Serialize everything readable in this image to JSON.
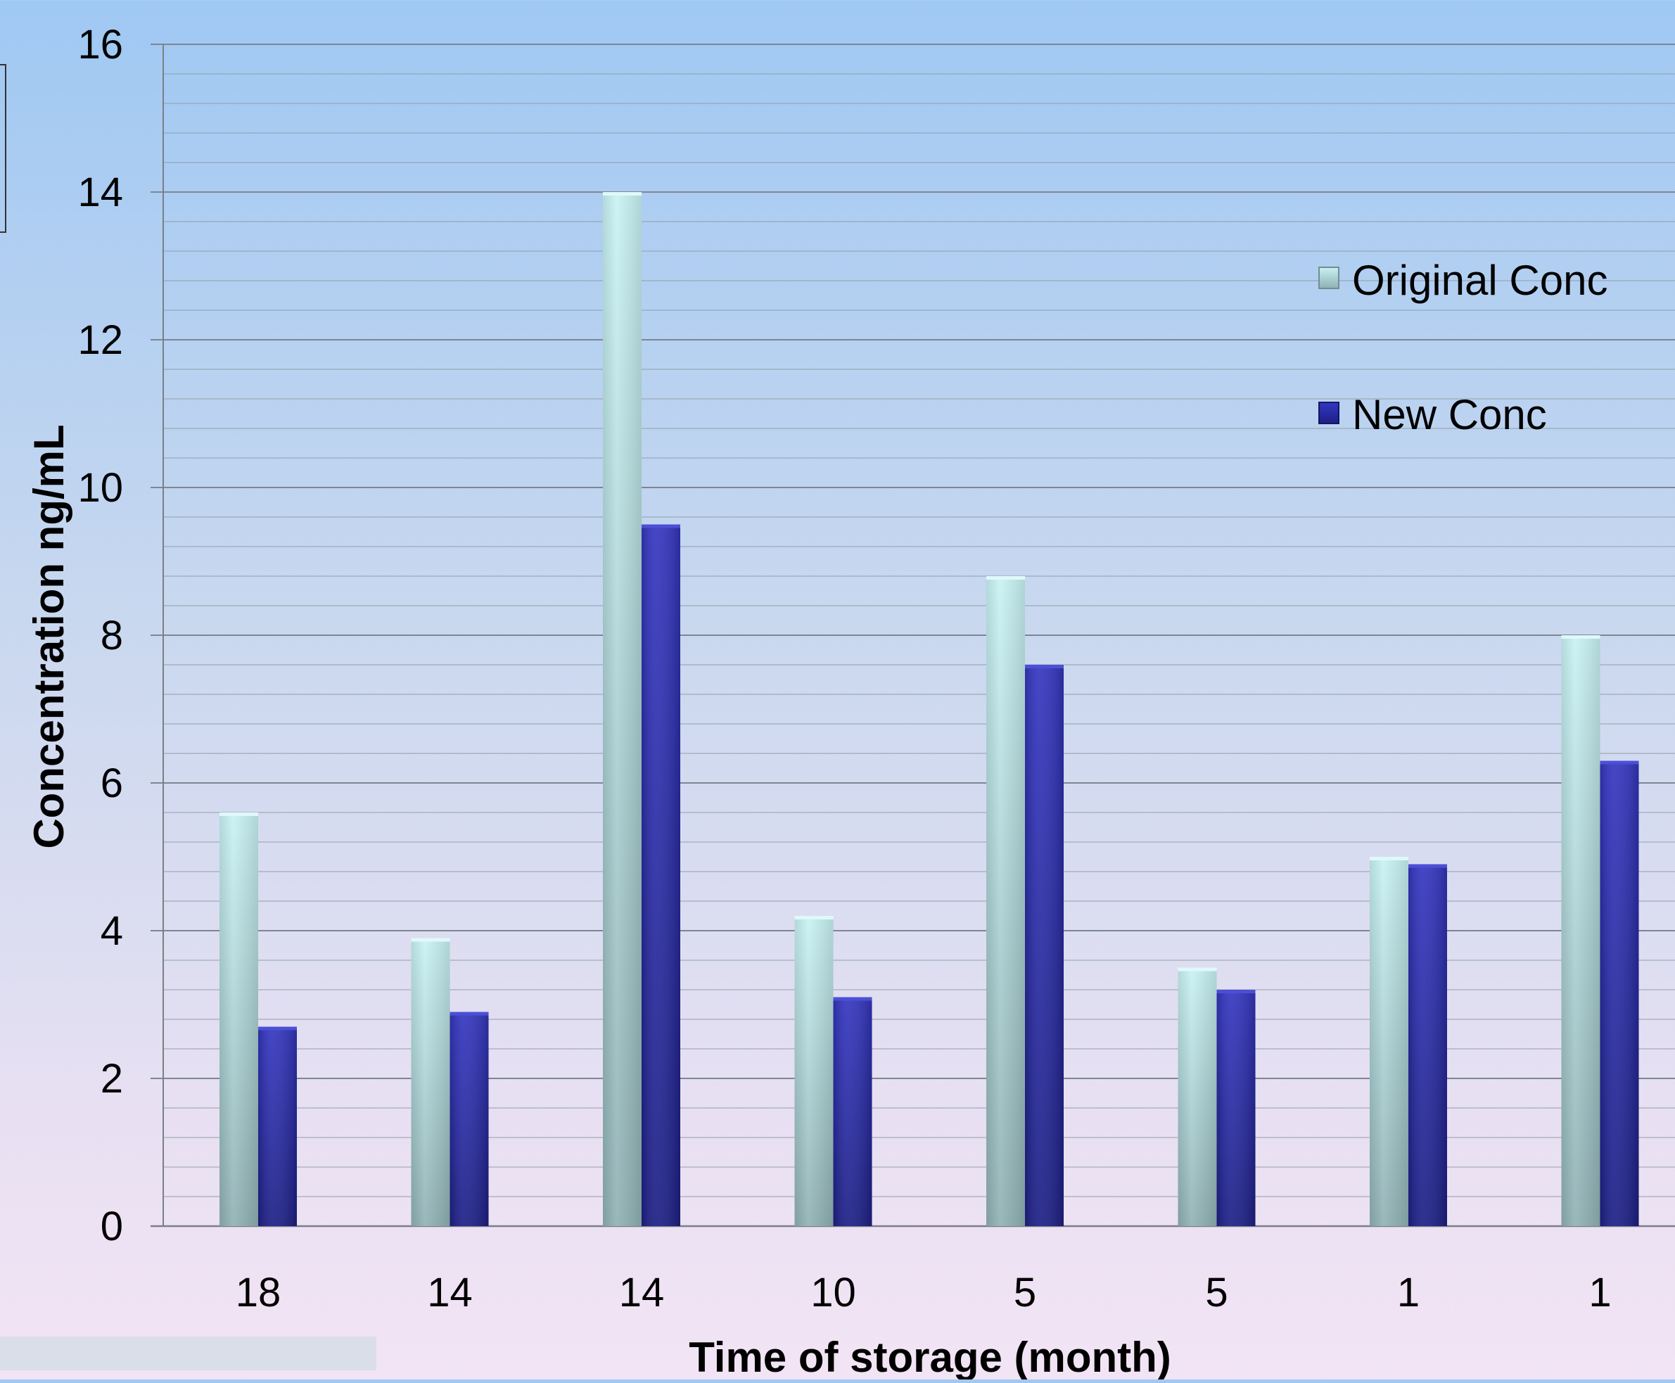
{
  "chart_data": {
    "type": "bar",
    "title": "",
    "xlabel": "Time of storage (month)",
    "ylabel": "Concentration ng/mL",
    "categories": [
      "18",
      "14",
      "14",
      "10",
      "5",
      "5",
      "1",
      "1"
    ],
    "series": [
      {
        "name": "Original Conc",
        "values": [
          5.6,
          3.9,
          14.0,
          4.2,
          8.8,
          3.5,
          5.0,
          8.0
        ]
      },
      {
        "name": "New Conc",
        "values": [
          2.7,
          2.9,
          9.5,
          3.1,
          7.6,
          3.2,
          4.9,
          6.3
        ]
      }
    ],
    "ylim": [
      0,
      16
    ],
    "yticks": [
      "0",
      "2",
      "4",
      "6",
      "8",
      "10",
      "12",
      "14",
      "16"
    ],
    "grid": true,
    "legend_position": "top-right"
  },
  "colors": {
    "original_light": "#c3eef0",
    "original_dark": "#8fb2b5",
    "new_light": "#3a3dc4",
    "new_dark": "#1c1e8a",
    "gridline": "#8e9aa6",
    "axis": "#7a7f86"
  }
}
